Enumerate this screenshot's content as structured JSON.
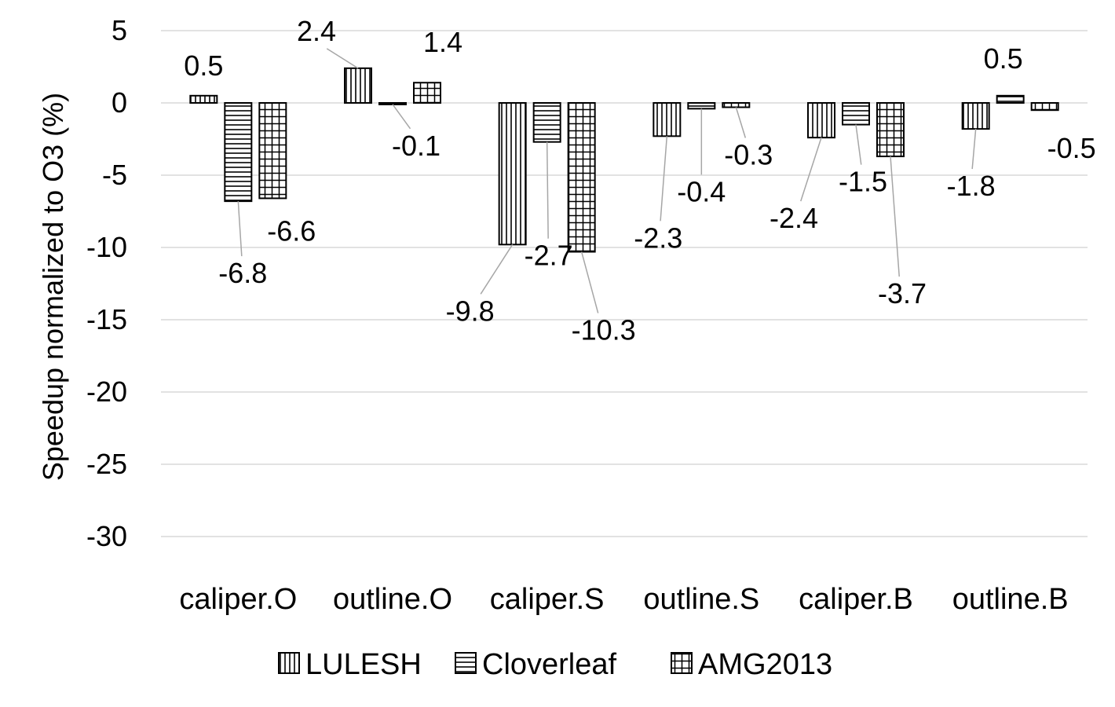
{
  "chart_data": {
    "type": "bar",
    "title": "",
    "xlabel": "",
    "ylabel": "Speedup normalized to O3 (%)",
    "ylim": [
      -30,
      5
    ],
    "yticks": [
      5,
      0,
      -5,
      -10,
      -15,
      -20,
      -25,
      -30
    ],
    "grid": true,
    "legend_position": "bottom",
    "categories": [
      "caliper.O",
      "outline.O",
      "caliper.S",
      "outline.S",
      "caliper.B",
      "outline.B"
    ],
    "series": [
      {
        "name": "LULESH",
        "pattern": "vertical-lines",
        "values": [
          0.5,
          2.4,
          -9.8,
          -2.3,
          -2.4,
          -1.8
        ]
      },
      {
        "name": "Cloverleaf",
        "pattern": "horizontal-lines",
        "values": [
          -6.8,
          -0.1,
          -2.7,
          -0.4,
          -1.5,
          0.5
        ]
      },
      {
        "name": "AMG2013",
        "pattern": "grid",
        "values": [
          -6.6,
          1.4,
          -10.3,
          -0.3,
          -3.7,
          -0.5
        ]
      }
    ],
    "data_labels": [
      [
        "0.5",
        "-6.8",
        "-6.6"
      ],
      [
        "2.4",
        "-0.1",
        "1.4"
      ],
      [
        "-9.8",
        "-2.7",
        "-10.3"
      ],
      [
        "-2.3",
        "-0.4",
        "-0.3"
      ],
      [
        "-2.4",
        "-1.5",
        "-3.7"
      ],
      [
        "-1.8",
        "0.5",
        "-0.5"
      ]
    ],
    "colors": {
      "bar_fill": "#ffffff",
      "bar_stroke": "#000000",
      "gridline": "#d9d9d9",
      "leader_line": "#a6a6a6"
    }
  }
}
